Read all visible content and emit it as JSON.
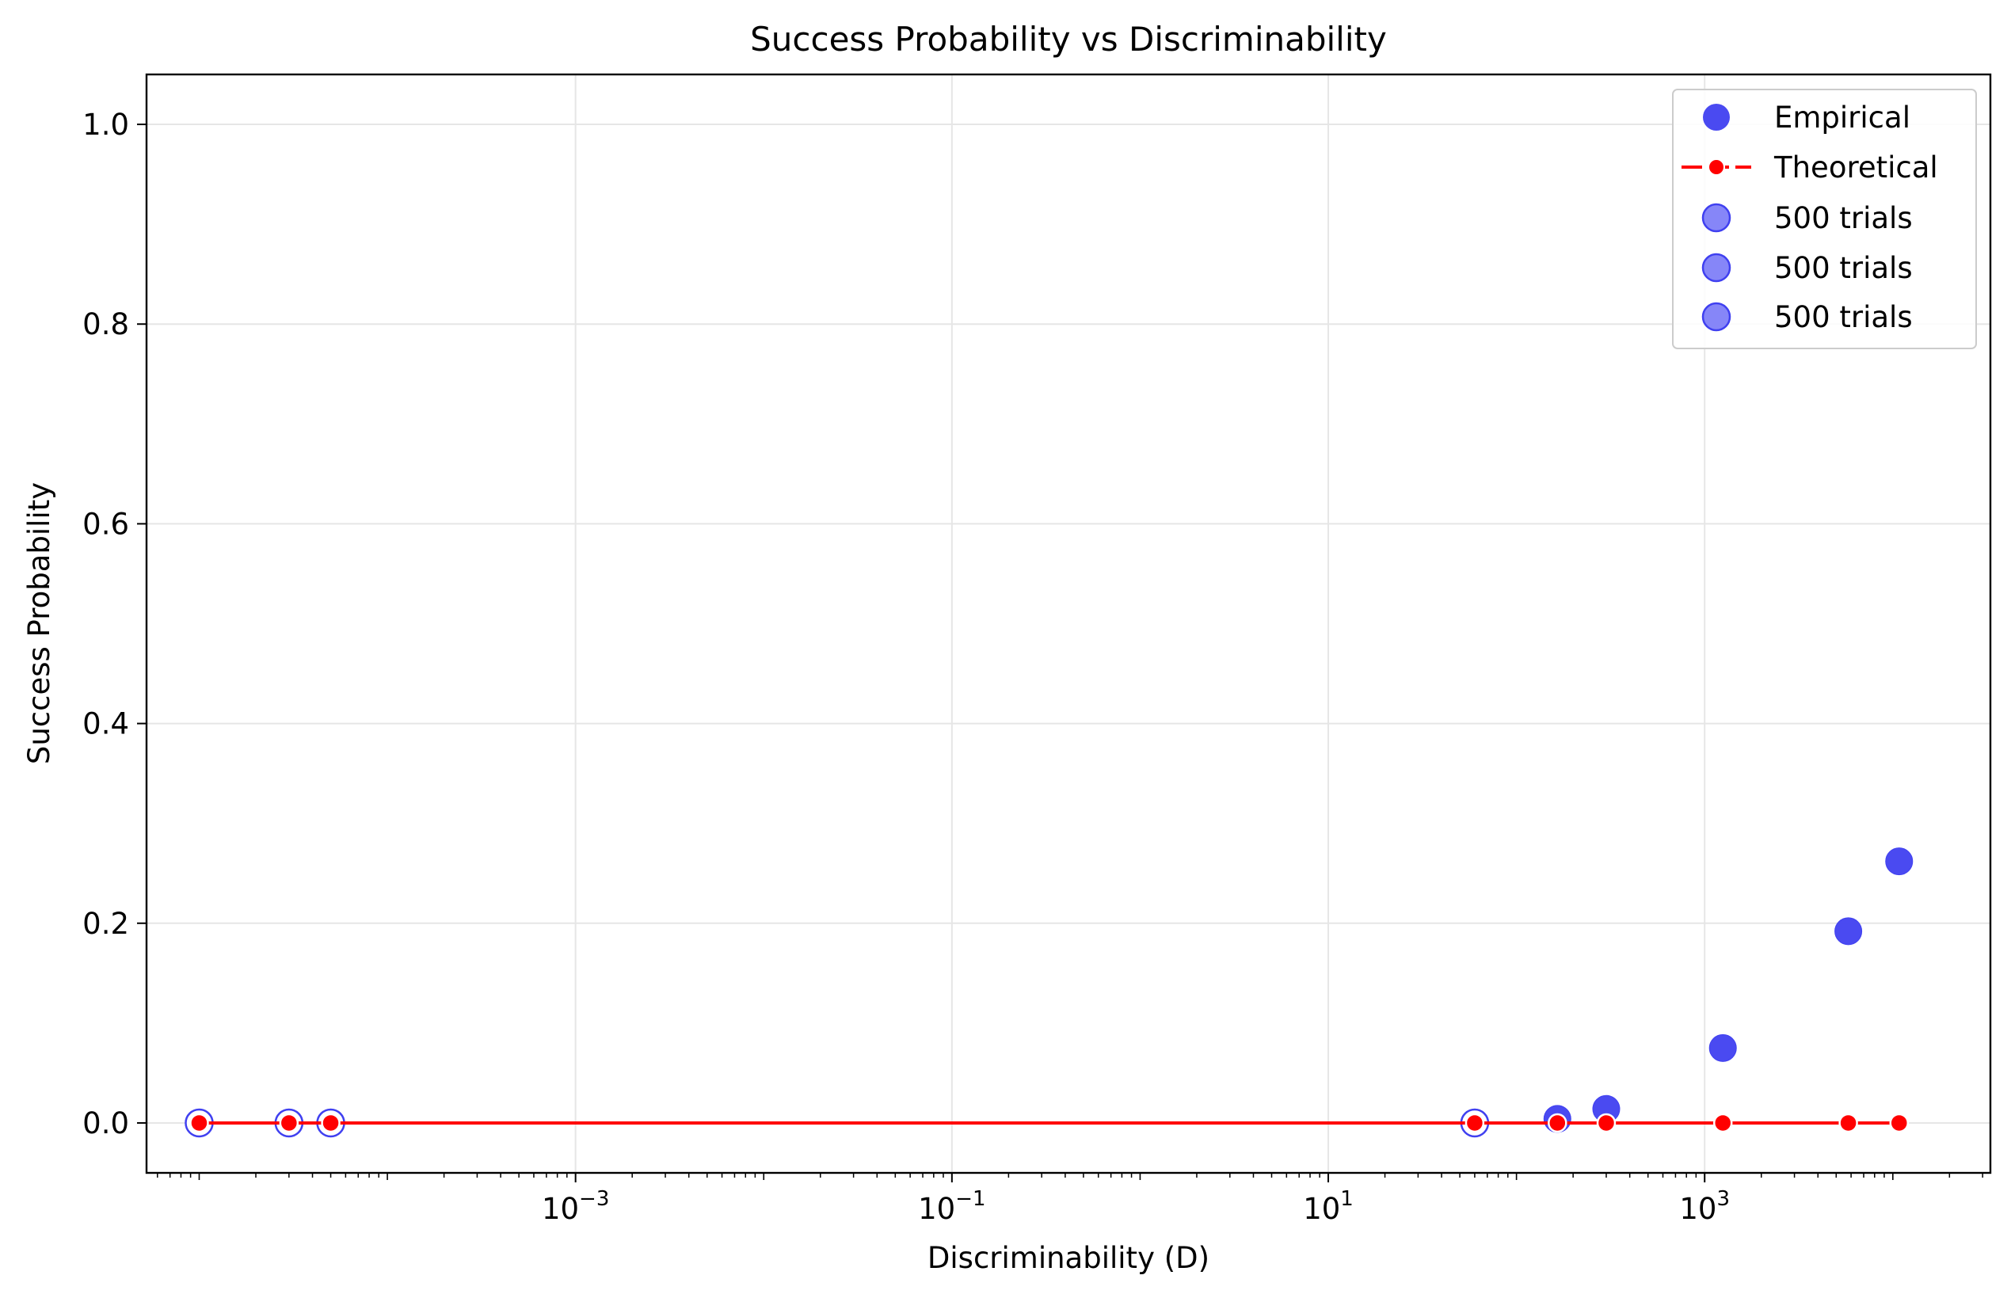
{
  "chart_data": {
    "type": "scatter",
    "title": "Success Probability vs Discriminability",
    "xlabel": "Discriminability (D)",
    "ylabel": "Success Probability",
    "xscale": "log",
    "xlim": [
      5.25e-06,
      33000
    ],
    "ylim": [
      -0.05,
      1.05
    ],
    "x_ticks": [
      {
        "value": 0.001,
        "base": "10",
        "exp": "−3"
      },
      {
        "value": 0.1,
        "base": "10",
        "exp": "−1"
      },
      {
        "value": 10,
        "base": "10",
        "exp": "1"
      },
      {
        "value": 1000,
        "base": "10",
        "exp": "3"
      }
    ],
    "y_ticks": [
      "0.0",
      "0.2",
      "0.4",
      "0.6",
      "0.8",
      "1.0"
    ],
    "grid": true,
    "legend_position": "top-right",
    "colors": {
      "empirical": "#4040f0",
      "theoretical": "#ff0000",
      "trials": "#8080f8",
      "grid": "#e6e6e6"
    },
    "series": [
      {
        "name": "Empirical",
        "kind": "scatter",
        "points": [
          {
            "x": 1e-05,
            "y": 0.0
          },
          {
            "x": 3e-05,
            "y": 0.0
          },
          {
            "x": 5e-05,
            "y": 0.0
          },
          {
            "x": 60,
            "y": 0.0
          },
          {
            "x": 165,
            "y": 0.004
          },
          {
            "x": 300,
            "y": 0.014
          },
          {
            "x": 1250,
            "y": 0.075
          },
          {
            "x": 5800,
            "y": 0.192
          },
          {
            "x": 10800,
            "y": 0.262
          }
        ]
      },
      {
        "name": "Theoretical",
        "kind": "line",
        "points": [
          {
            "x": 1e-05,
            "y": 0.0
          },
          {
            "x": 3e-05,
            "y": 0.0
          },
          {
            "x": 5e-05,
            "y": 0.0
          },
          {
            "x": 60,
            "y": 0.0
          },
          {
            "x": 165,
            "y": 0.0
          },
          {
            "x": 300,
            "y": 0.0
          },
          {
            "x": 1250,
            "y": 0.0
          },
          {
            "x": 5800,
            "y": 0.0
          },
          {
            "x": 10800,
            "y": 0.0
          }
        ]
      }
    ],
    "legend": [
      "Empirical",
      "Theoretical",
      "500 trials",
      "500 trials",
      "500 trials"
    ]
  }
}
